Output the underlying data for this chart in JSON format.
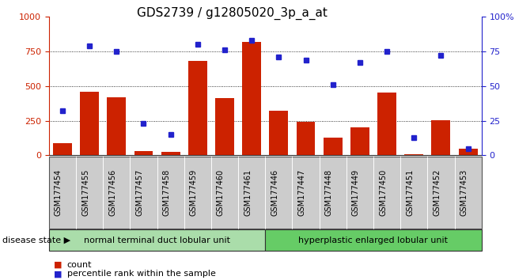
{
  "title": "GDS2739 / g12805020_3p_a_at",
  "samples": [
    "GSM177454",
    "GSM177455",
    "GSM177456",
    "GSM177457",
    "GSM177458",
    "GSM177459",
    "GSM177460",
    "GSM177461",
    "GSM177446",
    "GSM177447",
    "GSM177448",
    "GSM177449",
    "GSM177450",
    "GSM177451",
    "GSM177452",
    "GSM177453"
  ],
  "counts": [
    90,
    460,
    420,
    30,
    25,
    680,
    415,
    820,
    325,
    245,
    130,
    205,
    455,
    8,
    255,
    50
  ],
  "percentiles": [
    32,
    79,
    75,
    23,
    15,
    80,
    76,
    83,
    71,
    69,
    51,
    67,
    75,
    13,
    72,
    5
  ],
  "group1_label": "normal terminal duct lobular unit",
  "group2_label": "hyperplastic enlarged lobular unit",
  "group1_count": 8,
  "group2_count": 8,
  "bar_color": "#cc2200",
  "dot_color": "#2222cc",
  "left_axis_color": "#cc2200",
  "right_axis_color": "#2222cc",
  "ylim_left": [
    0,
    1000
  ],
  "ylim_right": [
    0,
    100
  ],
  "yticks_left": [
    0,
    250,
    500,
    750,
    1000
  ],
  "yticks_right": [
    0,
    25,
    50,
    75,
    100
  ],
  "ytick_labels_left": [
    "0",
    "250",
    "500",
    "750",
    "1000"
  ],
  "ytick_labels_right": [
    "0",
    "25",
    "50",
    "75",
    "100%"
  ],
  "group1_color": "#aaddaa",
  "group2_color": "#66cc66",
  "disease_state_label": "disease state",
  "legend_count_label": "count",
  "legend_percentile_label": "percentile rank within the sample",
  "background_color": "#ffffff",
  "xtick_bg_color": "#cccccc",
  "title_fontsize": 11,
  "tick_fontsize": 8,
  "label_fontsize": 7
}
